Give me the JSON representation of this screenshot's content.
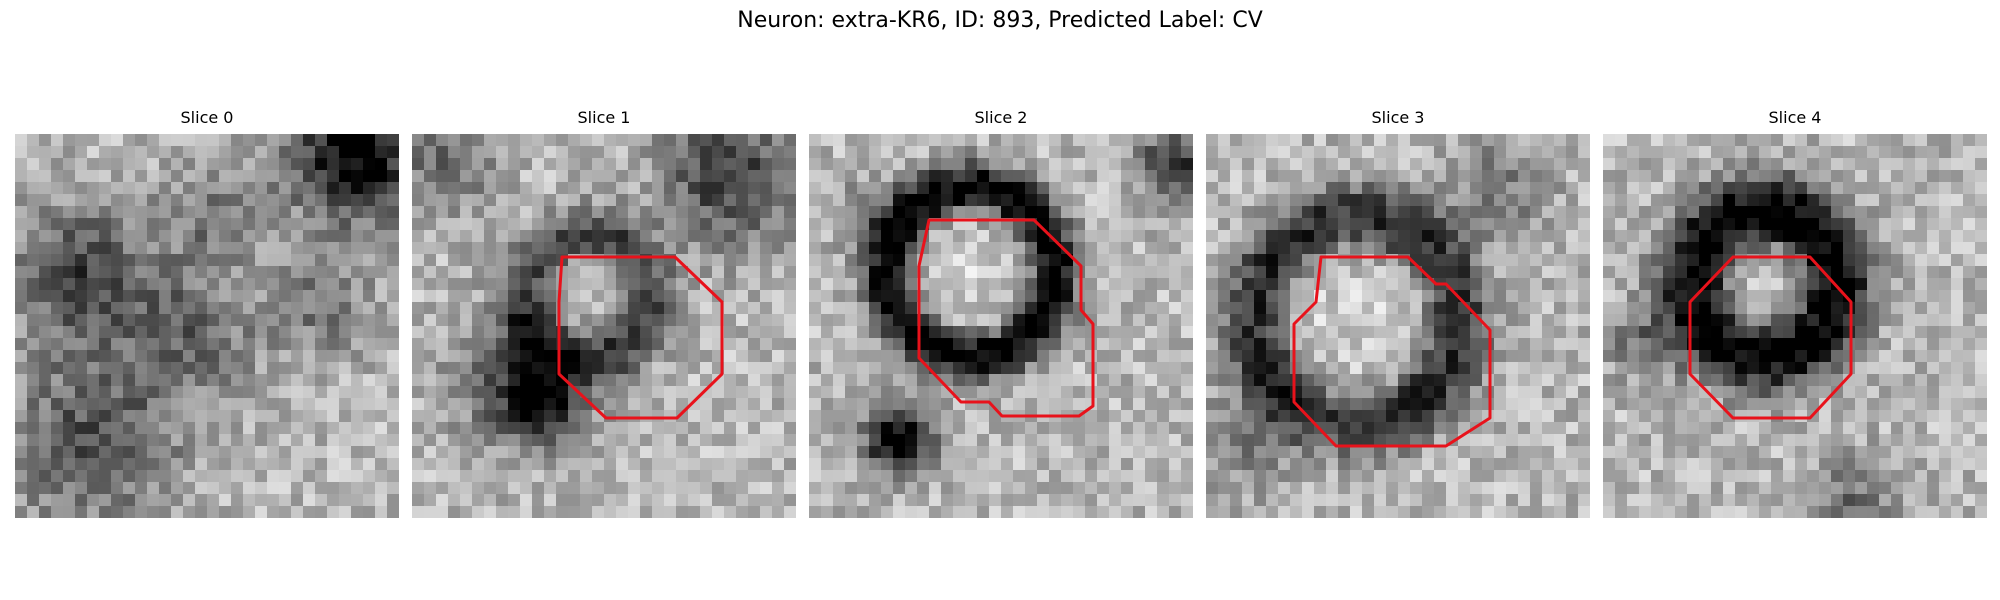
{
  "figure": {
    "title": "Neuron: extra-KR6, ID: 893, Predicted Label: CV"
  },
  "colors": {
    "contour": "#e8121b"
  },
  "panels": [
    {
      "title": "Slice 0"
    },
    {
      "title": "Slice 1"
    },
    {
      "title": "Slice 2"
    },
    {
      "title": "Slice 3"
    },
    {
      "title": "Slice 4"
    }
  ]
}
